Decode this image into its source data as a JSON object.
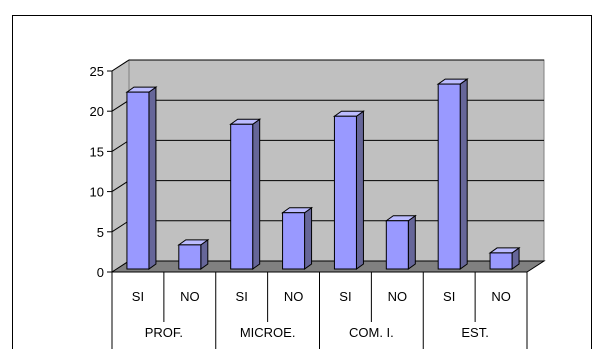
{
  "chart_data": {
    "type": "bar",
    "groups": [
      "PROF.",
      "MICROE.",
      "COM. I.",
      "EST."
    ],
    "subcategories": [
      "SI",
      "NO"
    ],
    "categories": [
      "SI",
      "NO",
      "SI",
      "NO",
      "SI",
      "NO",
      "SI",
      "NO"
    ],
    "values": [
      22,
      3,
      18,
      7,
      19,
      6,
      23,
      2
    ],
    "yticks": [
      "0",
      "5",
      "10",
      "15",
      "20",
      "25"
    ],
    "ylim": [
      0,
      25
    ],
    "grid": true,
    "legend": "none",
    "colors": {
      "bar_front": "#9999ff",
      "bar_side": "#666699",
      "bar_top": "#bcbcff",
      "back_wall": "#c0c0c0",
      "floor": "#808080",
      "outline": "#000000"
    }
  }
}
